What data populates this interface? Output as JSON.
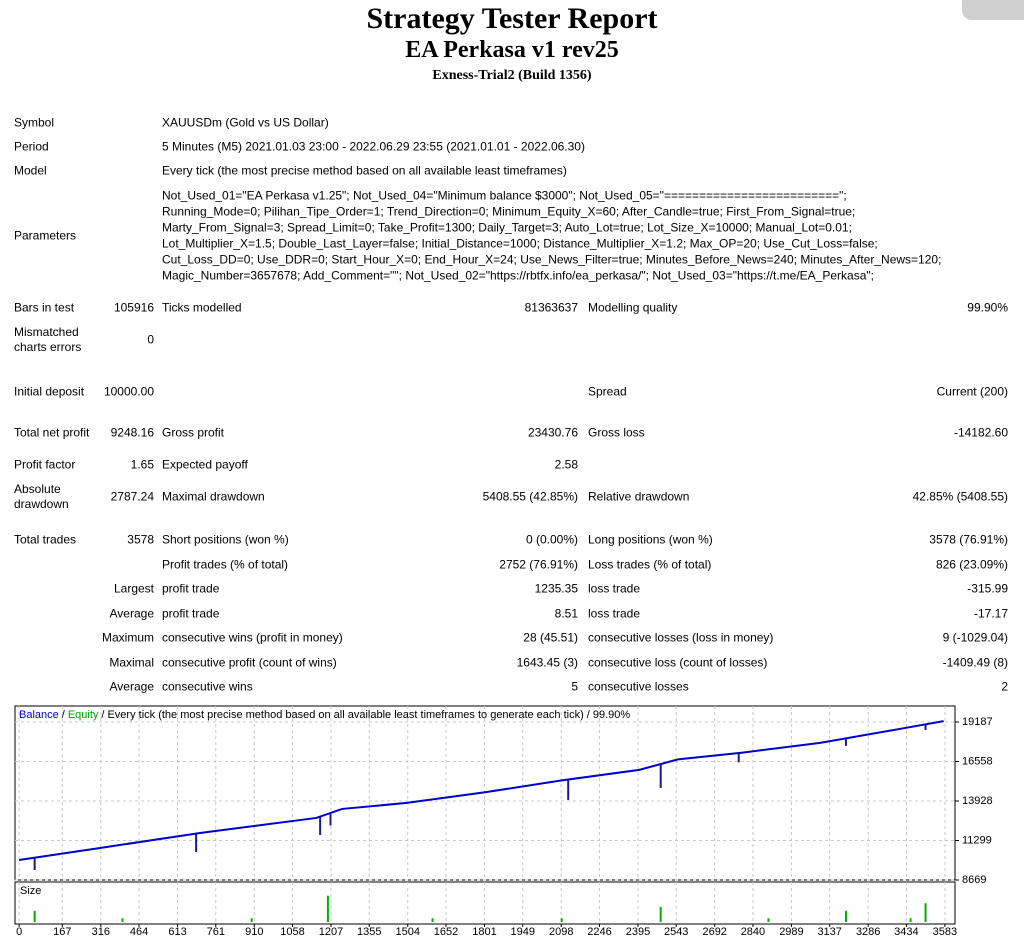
{
  "header": {
    "title": "Strategy Tester Report",
    "subtitle": "EA Perkasa v1 rev25",
    "server": "Exness-Trial2 (Build 1356)"
  },
  "info": [
    {
      "label": "Symbol",
      "value": "XAUUSDm (Gold vs US Dollar)"
    },
    {
      "label": "Period",
      "value": "5 Minutes (M5) 2021.01.03 23:00 - 2022.06.29 23:55 (2021.01.01 - 2022.06.30)"
    },
    {
      "label": "Model",
      "value": "Every tick (the most precise method based on all available least timeframes)"
    },
    {
      "label": "Parameters",
      "lines": [
        "Not_Used_01=\"EA Perkasa v1.25\"; Not_Used_04=\"Minimum balance $3000\"; Not_Used_05=\"=========================\";",
        "Running_Mode=0; Pilihan_Tipe_Order=1; Trend_Direction=0; Minimum_Equity_X=60; After_Candle=true; First_From_Signal=true;",
        "Marty_From_Signal=3; Spread_Limit=0; Take_Profit=1300; Daily_Target=3; Auto_Lot=true; Lot_Size_X=10000; Manual_Lot=0.01;",
        "Lot_Multiplier_X=1.5; Double_Last_Layer=false; Initial_Distance=1000; Distance_Multiplier_X=1.2; Max_OP=20; Use_Cut_Loss=false;",
        "Cut_Loss_DD=0; Use_DDR=0; Start_Hour_X=0; End_Hour_X=24; Use_News_Filter=true; Minutes_Before_News=240; Minutes_After_News=120;",
        "Magic_Number=3657678; Add_Comment=\"\"; Not_Used_02=\"https://rbtfx.info/ea_perkasa/\"; Not_Used_03=\"https://t.me/EA_Perkasa\";"
      ]
    }
  ],
  "stats": [
    [
      "Bars in test",
      "105916",
      "Ticks modelled",
      "81363637",
      "Modelling quality",
      "99.90%"
    ],
    [
      "Mismatched charts errors",
      "0",
      null,
      null,
      null,
      null
    ],
    [
      "Initial deposit",
      "10000.00",
      null,
      null,
      "Spread",
      "Current (200)"
    ],
    [
      "Total net profit",
      "9248.16",
      "Gross profit",
      "23430.76",
      "Gross loss",
      "-14182.60"
    ],
    [
      "Profit factor",
      "1.65",
      "Expected payoff",
      "2.58",
      null,
      null
    ],
    [
      "Absolute drawdown",
      "2787.24",
      "Maximal drawdown",
      "5408.55 (42.85%)",
      "Relative drawdown",
      "42.85% (5408.55)"
    ],
    [
      "Total trades",
      "3578",
      "Short positions (won %)",
      "0 (0.00%)",
      "Long positions (won %)",
      "3578 (76.91%)"
    ],
    [
      null,
      null,
      "Profit trades (% of total)",
      "2752 (76.91%)",
      "Loss trades (% of total)",
      "826 (23.09%)"
    ],
    [
      null,
      "Largest",
      "profit trade",
      "1235.35",
      "loss trade",
      "-315.99"
    ],
    [
      null,
      "Average",
      "profit trade",
      "8.51",
      "loss trade",
      "-17.17"
    ],
    [
      null,
      "Maximum",
      "consecutive wins (profit in money)",
      "28 (45.51)",
      "consecutive losses (loss in money)",
      "9 (-1029.04)"
    ],
    [
      null,
      "Maximal",
      "consecutive profit (count of wins)",
      "1643.45 (3)",
      "consecutive loss (count of losses)",
      "-1409.49 (8)"
    ],
    [
      null,
      "Average",
      "consecutive wins",
      "5",
      "consecutive losses",
      "2"
    ]
  ],
  "chart": {
    "type": "line",
    "legend_separator": "/",
    "caption": "Every tick (the most precise method based on all available least timeframes to generate each tick)",
    "quality": "99.90%",
    "series": [
      {
        "name": "Balance",
        "color": "#0000cc",
        "x": [
          0,
          313,
          700,
          1150,
          1250,
          1500,
          1800,
          2100,
          2400,
          2550,
          2800,
          3100,
          3400,
          3578
        ],
        "values": [
          10000,
          10800,
          11800,
          12800,
          13400,
          13800,
          14500,
          15300,
          16000,
          16700,
          17150,
          17800,
          18700,
          19248
        ]
      },
      {
        "name": "Equity",
        "color": "#00a000",
        "x": [
          60,
          685,
          1165,
          1205,
          2125,
          2483,
          2785,
          3200,
          3508
        ],
        "values": [
          9335,
          10530,
          11666,
          12300,
          14000,
          14800,
          16500,
          17600,
          18650
        ]
      }
    ],
    "xlim": [
      -16,
      3622
    ],
    "ylim": [
      8669,
      20252
    ],
    "xticks": [
      0,
      167,
      316,
      464,
      613,
      761,
      910,
      1058,
      1207,
      1355,
      1504,
      1652,
      1801,
      1949,
      2098,
      2246,
      2395,
      2543,
      2692,
      2840,
      2989,
      3137,
      3286,
      3434,
      3583
    ],
    "yticks": [
      8669,
      11299,
      13928,
      16558,
      19187
    ],
    "grid": true,
    "size": {
      "label": "Size",
      "color": "#00b000",
      "lim": [
        0,
        0.08
      ],
      "x": [
        60,
        400,
        900,
        1195,
        1600,
        2100,
        2483,
        2900,
        3200,
        3450,
        3508
      ],
      "values": [
        0.03,
        0.01,
        0.01,
        0.07,
        0.01,
        0.01,
        0.04,
        0.01,
        0.03,
        0.01,
        0.05
      ]
    }
  }
}
